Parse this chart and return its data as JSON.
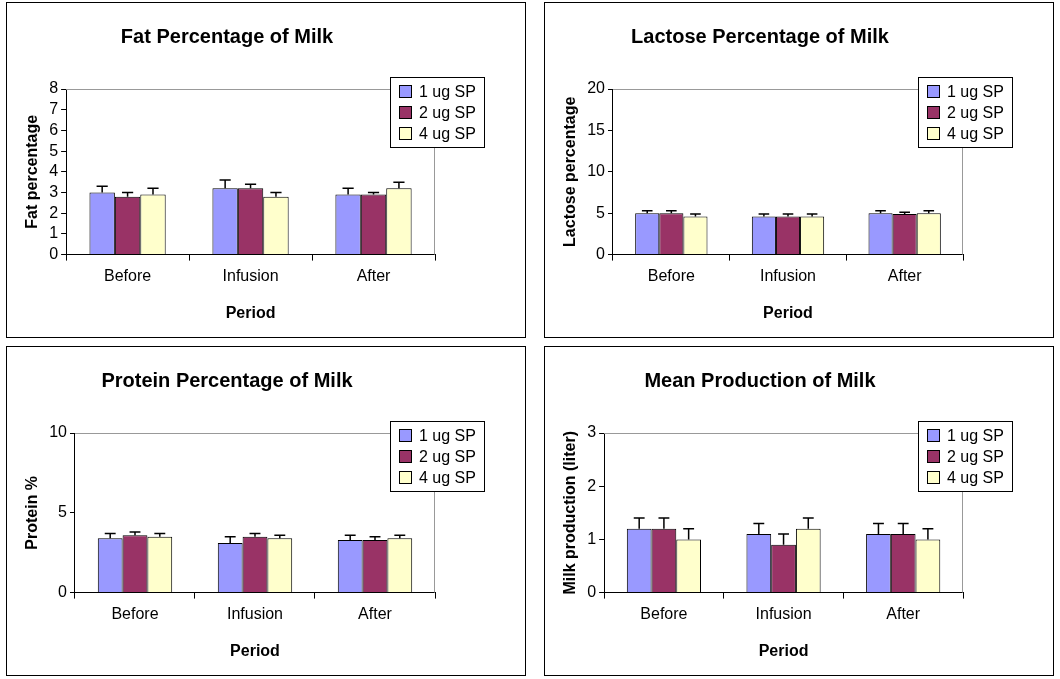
{
  "chart_data": [
    {
      "type": "bar",
      "title": "Fat Percentage of Milk",
      "xlabel": "Period",
      "ylabel": "Fat percentage",
      "categories": [
        "Before",
        "Infusion",
        "After"
      ],
      "ylim": [
        0,
        8
      ],
      "yticks": [
        0,
        1,
        2,
        3,
        4,
        5,
        6,
        7,
        8
      ],
      "grid": false,
      "legend": "top right",
      "series": [
        {
          "name": "1 ug SP",
          "color": "#9999ff",
          "values": [
            3.0,
            3.2,
            2.9
          ],
          "errors": [
            [
              3.0,
              3.3
            ],
            [
              3.2,
              3.6
            ],
            [
              2.9,
              3.2
            ]
          ]
        },
        {
          "name": "2 ug SP",
          "color": "#993366",
          "values": [
            2.8,
            3.2,
            2.9
          ],
          "errors": [
            [
              2.8,
              3.0
            ],
            [
              3.2,
              3.4
            ],
            [
              2.9,
              3.0
            ]
          ]
        },
        {
          "name": "4 ug SP",
          "color": "#ffffcc",
          "values": [
            2.9,
            2.8,
            3.2
          ],
          "errors": [
            [
              2.9,
              3.2
            ],
            [
              2.8,
              3.0
            ],
            [
              3.2,
              3.5
            ]
          ]
        }
      ]
    },
    {
      "type": "bar",
      "title": "Lactose Percentage of Milk",
      "xlabel": "Period",
      "ylabel": "Lactose percentage",
      "categories": [
        "Before",
        "Infusion",
        "After"
      ],
      "ylim": [
        0,
        20
      ],
      "yticks": [
        0,
        5,
        10,
        15,
        20
      ],
      "grid": false,
      "legend": "top right",
      "series": [
        {
          "name": "1 ug SP",
          "color": "#9999ff",
          "values": [
            5.0,
            4.6,
            5.0
          ],
          "errors": [
            [
              5.0,
              5.3
            ],
            [
              4.6,
              4.9
            ],
            [
              5.0,
              5.3
            ]
          ]
        },
        {
          "name": "2 ug SP",
          "color": "#993366",
          "values": [
            5.0,
            4.6,
            4.9
          ],
          "errors": [
            [
              5.0,
              5.3
            ],
            [
              4.6,
              4.9
            ],
            [
              4.9,
              5.1
            ]
          ]
        },
        {
          "name": "4 ug SP",
          "color": "#ffffcc",
          "values": [
            4.6,
            4.6,
            5.0
          ],
          "errors": [
            [
              4.6,
              4.9
            ],
            [
              4.6,
              4.9
            ],
            [
              5.0,
              5.3
            ]
          ]
        }
      ]
    },
    {
      "type": "bar",
      "title": "Protein Percentage of Milk",
      "xlabel": "Period",
      "ylabel": "Protein %",
      "categories": [
        "Before",
        "Infusion",
        "After"
      ],
      "ylim": [
        0,
        10
      ],
      "yticks": [
        0,
        5,
        10
      ],
      "grid": false,
      "legend": "top right",
      "series": [
        {
          "name": "1 ug SP",
          "color": "#9999ff",
          "values": [
            3.4,
            3.1,
            3.3
          ],
          "errors": [
            [
              3.4,
              3.7
            ],
            [
              3.1,
              3.5
            ],
            [
              3.3,
              3.6
            ]
          ]
        },
        {
          "name": "2 ug SP",
          "color": "#993366",
          "values": [
            3.6,
            3.5,
            3.3
          ],
          "errors": [
            [
              3.6,
              3.8
            ],
            [
              3.5,
              3.7
            ],
            [
              3.3,
              3.5
            ]
          ]
        },
        {
          "name": "4 ug SP",
          "color": "#ffffcc",
          "values": [
            3.5,
            3.4,
            3.4
          ],
          "errors": [
            [
              3.5,
              3.7
            ],
            [
              3.4,
              3.6
            ],
            [
              3.4,
              3.6
            ]
          ]
        }
      ]
    },
    {
      "type": "bar",
      "title": "Mean Production of Milk",
      "xlabel": "Period",
      "ylabel": "Milk production (liter)",
      "categories": [
        "Before",
        "Infusion",
        "After"
      ],
      "ylim": [
        0,
        3
      ],
      "yticks": [
        0,
        1,
        2,
        3
      ],
      "grid": false,
      "legend": "top right",
      "series": [
        {
          "name": "1 ug SP",
          "color": "#9999ff",
          "values": [
            1.2,
            1.1,
            1.1
          ],
          "errors": [
            [
              1.2,
              1.4
            ],
            [
              1.1,
              1.3
            ],
            [
              1.1,
              1.3
            ]
          ]
        },
        {
          "name": "2 ug SP",
          "color": "#993366",
          "values": [
            1.2,
            0.9,
            1.1
          ],
          "errors": [
            [
              1.2,
              1.4
            ],
            [
              0.9,
              1.1
            ],
            [
              1.1,
              1.3
            ]
          ]
        },
        {
          "name": "4 ug SP",
          "color": "#ffffcc",
          "values": [
            1.0,
            1.2,
            1.0
          ],
          "errors": [
            [
              1.0,
              1.2
            ],
            [
              1.2,
              1.4
            ],
            [
              1.0,
              1.2
            ]
          ]
        }
      ]
    }
  ]
}
